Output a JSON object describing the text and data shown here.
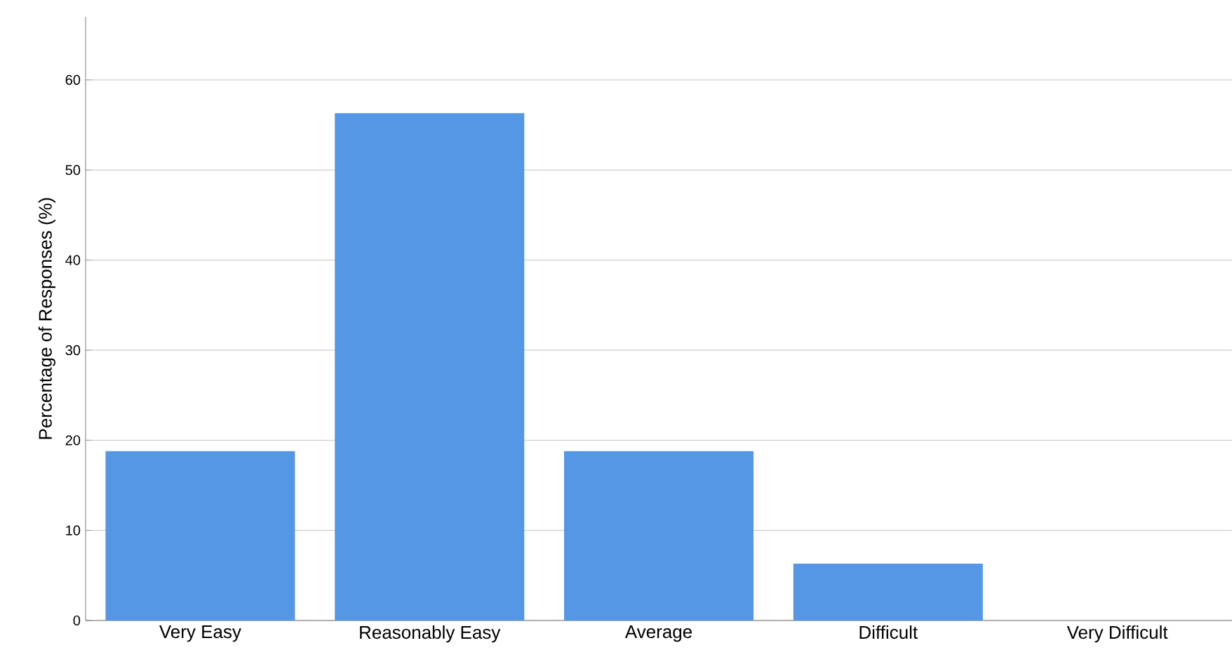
{
  "chart_data": {
    "type": "bar",
    "ylabel": "Percentage of Responses (%)",
    "categories": [
      "Very Easy",
      "Reasonably Easy",
      "Average",
      "Difficult",
      "Very Difficult"
    ],
    "values": [
      18.8,
      56.3,
      18.8,
      6.3,
      0
    ],
    "color": "#5597e4",
    "ylim": [
      0,
      67
    ],
    "yticks": [
      0,
      10,
      20,
      30,
      40,
      50,
      60
    ],
    "grid": "y"
  }
}
